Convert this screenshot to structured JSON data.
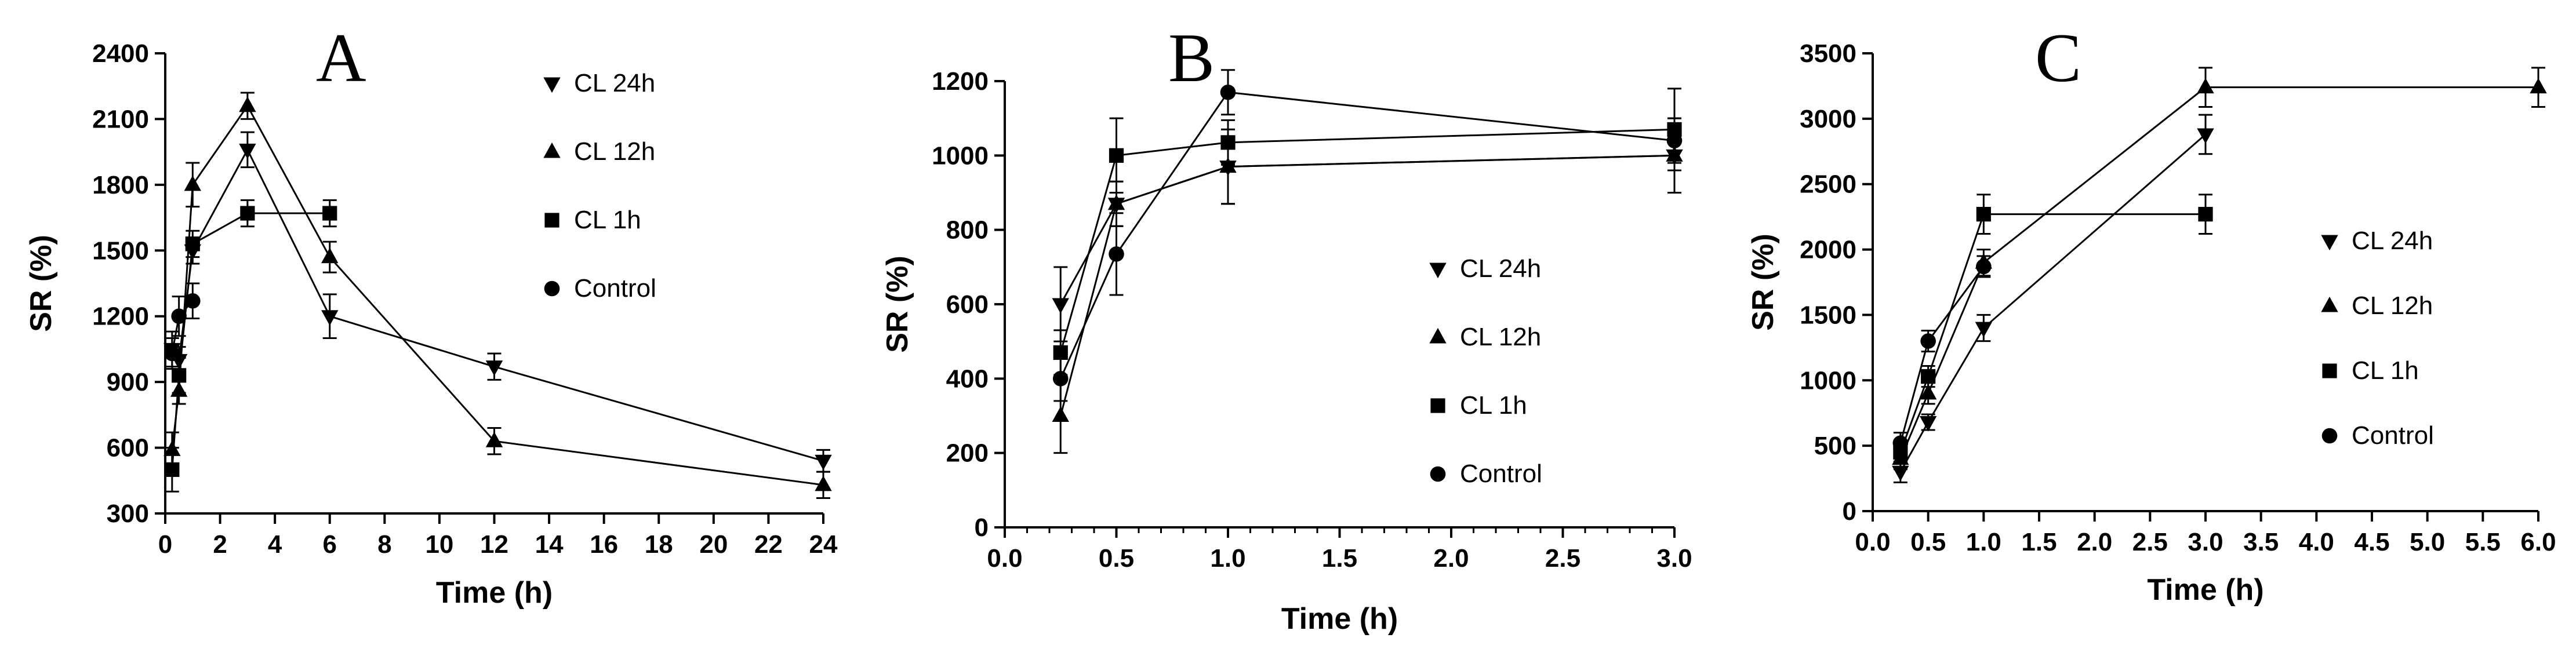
{
  "chart_data": [
    {
      "type": "line",
      "panel": "A",
      "xlabel": "Time (h)",
      "ylabel": "SR (%)",
      "xlim": [
        0,
        24
      ],
      "ylim": [
        300,
        2400
      ],
      "xticks": [
        0,
        2,
        4,
        6,
        8,
        10,
        12,
        14,
        16,
        18,
        20,
        22,
        24
      ],
      "xtick_labels": [
        "0",
        "2",
        "4",
        "6",
        "8",
        "10",
        "12",
        "14",
        "16",
        "18",
        "20",
        "22",
        "24"
      ],
      "yticks": [
        300,
        600,
        900,
        1200,
        1500,
        1800,
        2100,
        2400
      ],
      "ytick_labels": [
        "300",
        "600",
        "900",
        "1200",
        "1500",
        "1800",
        "2100",
        "2400"
      ],
      "legend_position": "top-right",
      "series": [
        {
          "name": "CL  24h",
          "marker": "triangle-down",
          "x": [
            0.25,
            0.5,
            1,
            3,
            6,
            12,
            24
          ],
          "y": [
            1050,
            1000,
            1500,
            1960,
            1200,
            970,
            540
          ],
          "err": [
            80,
            60,
            60,
            80,
            100,
            60,
            50
          ]
        },
        {
          "name": "CL 12h",
          "marker": "triangle-up",
          "x": [
            0.25,
            0.5,
            1,
            3,
            6,
            12,
            24
          ],
          "y": [
            590,
            860,
            1800,
            2160,
            1470,
            630,
            430
          ],
          "err": [
            80,
            60,
            100,
            60,
            70,
            60,
            60
          ]
        },
        {
          "name": "CL 1h",
          "marker": "square",
          "x": [
            0.25,
            0.5,
            1,
            3,
            6
          ],
          "y": [
            500,
            930,
            1530,
            1670,
            1670
          ],
          "err": [
            100,
            80,
            60,
            60,
            60
          ]
        },
        {
          "name": "Control",
          "marker": "circle",
          "x": [
            0.25,
            0.5,
            1
          ],
          "y": [
            1030,
            1200,
            1270
          ],
          "err": [
            70,
            90,
            80
          ]
        }
      ]
    },
    {
      "type": "line",
      "panel": "B",
      "xlabel": "Time (h)",
      "ylabel": "SR (%)",
      "xlim": [
        0,
        3
      ],
      "ylim": [
        0,
        1200
      ],
      "xticks": [
        0,
        0.5,
        1,
        1.5,
        2,
        2.5,
        3
      ],
      "xtick_labels": [
        "0.0",
        "0.5",
        "1.0",
        "1.5",
        "2.0",
        "2.5",
        "3.0"
      ],
      "yticks": [
        0,
        200,
        400,
        600,
        800,
        1000,
        1200
      ],
      "ytick_labels": [
        "0",
        "200",
        "400",
        "600",
        "800",
        "1000",
        "1200"
      ],
      "legend_position": "bottom-right",
      "series": [
        {
          "name": "CL  24h",
          "marker": "triangle-down",
          "x": [
            0.25,
            0.5,
            1,
            3
          ],
          "y": [
            600,
            870,
            970,
            1000
          ],
          "err": [
            100,
            60,
            100,
            100
          ]
        },
        {
          "name": "CL 12h",
          "marker": "triangle-up",
          "x": [
            0.25,
            0.5,
            1,
            3
          ],
          "y": [
            300,
            870,
            970,
            1000
          ],
          "err": [
            100,
            60,
            100,
            100
          ]
        },
        {
          "name": "CL 1h",
          "marker": "square",
          "x": [
            0.25,
            0.5,
            1,
            3
          ],
          "y": [
            470,
            1000,
            1035,
            1070
          ],
          "err": [
            60,
            100,
            60,
            110
          ]
        },
        {
          "name": "Control",
          "marker": "circle",
          "x": [
            0.25,
            0.5,
            1,
            3
          ],
          "y": [
            400,
            735,
            1170,
            1040
          ],
          "err": [
            60,
            110,
            60,
            60
          ]
        }
      ]
    },
    {
      "type": "line",
      "panel": "C",
      "xlabel": "Time (h)",
      "ylabel": "SR (%)",
      "xlim": [
        0,
        6
      ],
      "ylim": [
        0,
        3500
      ],
      "xticks": [
        0,
        0.5,
        1,
        1.5,
        2,
        2.5,
        3,
        3.5,
        4,
        4.5,
        5,
        5.5,
        6
      ],
      "xtick_labels": [
        "0.0",
        "0.5",
        "1.0",
        "1.5",
        "2.0",
        "2.5",
        "3.0",
        "3.5",
        "4.0",
        "4.5",
        "5.0",
        "5.5",
        "6.0"
      ],
      "yticks": [
        0,
        500,
        1000,
        1500,
        2000,
        2500,
        3000,
        3500
      ],
      "ytick_labels": [
        "0",
        "500",
        "1000",
        "1500",
        "2000",
        "2500",
        "3000",
        "3500"
      ],
      "legend_position": "right",
      "series": [
        {
          "name": "CL  24h",
          "marker": "triangle-down",
          "x": [
            0.25,
            0.5,
            1,
            3
          ],
          "y": [
            300,
            680,
            1400,
            2880
          ],
          "err": [
            80,
            60,
            100,
            150
          ]
        },
        {
          "name": "CL 12h",
          "marker": "triangle-up",
          "x": [
            0.25,
            0.5,
            1,
            3,
            6
          ],
          "y": [
            400,
            900,
            1900,
            3240,
            3240
          ],
          "err": [
            80,
            80,
            100,
            150,
            150
          ]
        },
        {
          "name": "CL 1h",
          "marker": "square",
          "x": [
            0.25,
            0.5,
            1,
            3
          ],
          "y": [
            450,
            1030,
            2270,
            2270
          ],
          "err": [
            80,
            80,
            150,
            150
          ]
        },
        {
          "name": "Control",
          "marker": "circle",
          "x": [
            0.25,
            0.5,
            1
          ],
          "y": [
            520,
            1300,
            1870
          ],
          "err": [
            80,
            80,
            80
          ]
        }
      ]
    }
  ]
}
